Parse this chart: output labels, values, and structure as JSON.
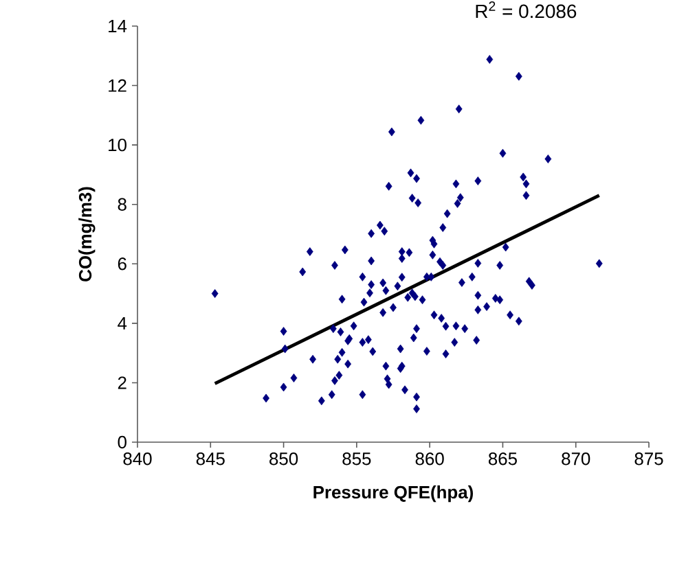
{
  "chart_data": {
    "type": "scatter",
    "xlabel": "Pressure QFE(hpa)",
    "ylabel": "CO(mg/m3)",
    "xlim": [
      840,
      875
    ],
    "xticks": [
      840,
      845,
      850,
      855,
      860,
      865,
      870,
      875
    ],
    "ylim": [
      0,
      14
    ],
    "yticks": [
      0,
      2,
      4,
      6,
      8,
      10,
      12,
      14
    ],
    "grid": false,
    "legend": false,
    "marker": "diamond",
    "annotations": [
      "R$^{2}$ = 0.2086"
    ],
    "series": [
      {
        "color": "#000080",
        "x": [
          845.3,
          857.4,
          858.7,
          857.2,
          858.8,
          856.6,
          856.9,
          856.0,
          851.8,
          854.2,
          851.3,
          853.5,
          856.0,
          858.1,
          858.6,
          858.1,
          855.4,
          856.0,
          855.9,
          856.8,
          857.0,
          858.1,
          857.8,
          854.0,
          855.5,
          856.8,
          857.5,
          858.5,
          858.8,
          850.0,
          850.1,
          853.4,
          853.9,
          854.8,
          854.5,
          854.4,
          855.4,
          855.8,
          856.1,
          852.0,
          854.0,
          853.7,
          854.4,
          853.8,
          853.5,
          850.7,
          850.0,
          848.8,
          852.6,
          853.3,
          855.4,
          858.0,
          857.0,
          857.1,
          857.2,
          858.1,
          858.0,
          858.3,
          864.1,
          866.1,
          862.0,
          859.4,
          865.0,
          868.1,
          859.1,
          861.8,
          863.3,
          866.4,
          866.6,
          866.6,
          859.2,
          862.1,
          861.9,
          861.2,
          860.9,
          860.2,
          860.3,
          860.2,
          860.7,
          860.9,
          865.2,
          864.8,
          863.3,
          862.9,
          862.2,
          866.8,
          867.0,
          871.6,
          859.8,
          860.1,
          859.0,
          859.5,
          863.3,
          863.3,
          863.9,
          864.5,
          864.8,
          860.3,
          860.8,
          861.1,
          861.8,
          862.4,
          863.2,
          865.5,
          866.1,
          861.7,
          859.8,
          861.1,
          859.1,
          858.9,
          859.1,
          859.1
        ],
        "values": [
          5.0,
          10.44,
          9.06,
          8.61,
          8.21,
          7.3,
          7.1,
          7.02,
          6.41,
          6.47,
          5.73,
          5.95,
          6.1,
          6.41,
          6.38,
          6.18,
          5.56,
          5.3,
          5.02,
          5.36,
          5.1,
          5.55,
          5.25,
          4.81,
          4.71,
          4.36,
          4.53,
          4.87,
          5.02,
          3.73,
          3.14,
          3.82,
          3.71,
          3.91,
          3.48,
          3.41,
          3.36,
          3.45,
          3.05,
          2.79,
          3.02,
          2.79,
          2.63,
          2.25,
          2.07,
          2.16,
          1.85,
          1.48,
          1.39,
          1.6,
          1.6,
          3.14,
          2.56,
          2.13,
          1.94,
          2.56,
          2.48,
          1.76,
          12.88,
          12.31,
          11.21,
          10.83,
          9.72,
          9.53,
          8.87,
          8.69,
          8.79,
          8.92,
          8.69,
          8.3,
          8.05,
          8.23,
          8.03,
          7.69,
          7.22,
          6.79,
          6.67,
          6.3,
          6.07,
          5.95,
          6.56,
          5.95,
          6.02,
          5.56,
          5.37,
          5.41,
          5.28,
          6.01,
          5.56,
          5.56,
          4.9,
          4.79,
          4.94,
          4.45,
          4.56,
          4.84,
          4.79,
          4.28,
          4.17,
          3.9,
          3.91,
          3.82,
          3.43,
          4.28,
          4.07,
          3.36,
          3.06,
          2.97,
          3.82,
          3.51,
          1.52,
          1.12
        ]
      },
      {
        "type": "line",
        "color": "#000000",
        "marker": "none",
        "line_style": "solid",
        "x": [
          845.3,
          871.6
        ],
        "values": [
          1.97,
          8.3
        ]
      }
    ]
  }
}
